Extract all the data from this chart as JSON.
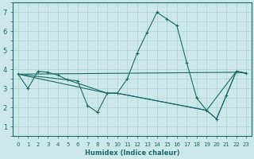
{
  "xlabel": "Humidex (Indice chaleur)",
  "xlim": [
    -0.5,
    23.5
  ],
  "ylim": [
    0.5,
    7.5
  ],
  "xticks": [
    0,
    1,
    2,
    3,
    4,
    5,
    6,
    7,
    8,
    9,
    10,
    11,
    12,
    13,
    14,
    15,
    16,
    17,
    18,
    19,
    20,
    21,
    22,
    23
  ],
  "yticks": [
    1,
    2,
    3,
    4,
    5,
    6,
    7
  ],
  "bg_color": "#cce8e8",
  "grid_color": "#b0d0d0",
  "line_color": "#1a6b6b",
  "series1_x": [
    0,
    1,
    2,
    3,
    4,
    5,
    6,
    7,
    8,
    9,
    10,
    11,
    12,
    13,
    14,
    15,
    16,
    17,
    18,
    19,
    20,
    21,
    22,
    23
  ],
  "series1_y": [
    3.75,
    3.0,
    3.9,
    3.85,
    3.7,
    3.45,
    3.4,
    2.1,
    1.75,
    2.75,
    2.75,
    3.5,
    4.85,
    5.95,
    7.0,
    6.65,
    6.3,
    4.35,
    2.5,
    1.85,
    1.4,
    2.65,
    3.9,
    3.8
  ],
  "series2_x": [
    0,
    22,
    23
  ],
  "series2_y": [
    3.75,
    3.85,
    3.8
  ],
  "series3_x": [
    0,
    9,
    10,
    19,
    20,
    22,
    23
  ],
  "series3_y": [
    3.75,
    2.75,
    2.75,
    1.85,
    1.4,
    3.9,
    3.8
  ],
  "series4_x": [
    0,
    5,
    9,
    10,
    19,
    22,
    23
  ],
  "series4_y": [
    3.75,
    3.45,
    2.75,
    2.75,
    1.85,
    3.9,
    3.8
  ]
}
